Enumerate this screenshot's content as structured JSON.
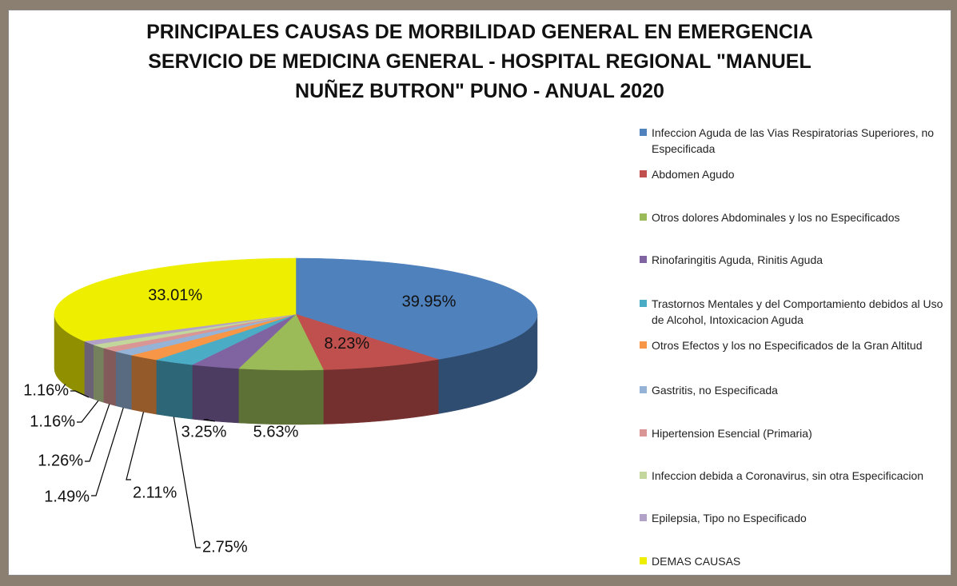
{
  "chart_data": {
    "type": "pie",
    "title": "PRINCIPALES CAUSAS DE MORBILIDAD GENERAL EN EMERGENCIA SERVICIO DE MEDICINA GENERAL - HOSPITAL REGIONAL \"MANUEL NUÑEZ BUTRON\" PUNO - ANUAL 2020",
    "categories": [
      "Infeccion Aguda de las Vias Respiratorias Superiores, no Especificada",
      "Abdomen Agudo",
      "Otros dolores Abdominales y los no Especificados",
      "Rinofaringitis Aguda, Rinitis Aguda",
      "Trastornos Mentales y del Comportamiento debidos al Uso de Alcohol, Intoxicacion Aguda",
      "Otros Efectos y los no Especificados de la Gran Altitud",
      "Gastritis, no Especificada",
      "Hipertension Esencial (Primaria)",
      "Infeccion debida a Coronavirus, sin otra Especificacion",
      "Epilepsia, Tipo no Especificado",
      "DEMAS CAUSAS"
    ],
    "values": [
      39.95,
      8.23,
      5.63,
      3.25,
      2.75,
      2.11,
      1.49,
      1.26,
      1.16,
      1.16,
      33.01
    ],
    "value_labels": [
      "39.95%",
      "8.23%",
      "5.63%",
      "3.25%",
      "2.75%",
      "2.11%",
      "1.49%",
      "1.26%",
      "1.16%",
      "1.16%",
      "33.01%"
    ],
    "colors": [
      "#4f81bd",
      "#c0504d",
      "#9bbb59",
      "#8064a2",
      "#4bacc6",
      "#f79646",
      "#95b3d7",
      "#d99694",
      "#c3d69b",
      "#b3a2c7",
      "#eeee00"
    ]
  }
}
